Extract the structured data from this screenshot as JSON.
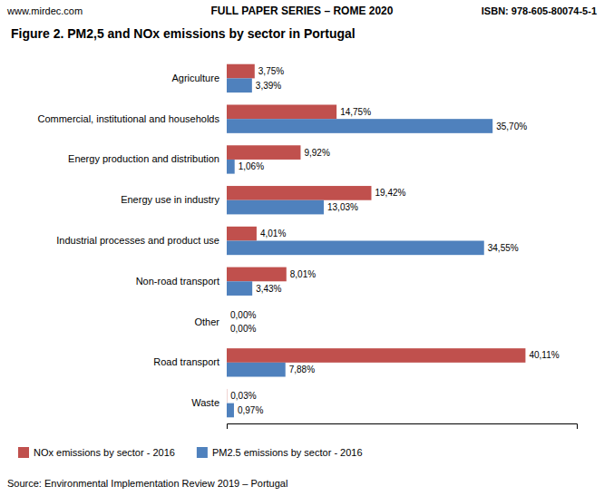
{
  "chart_data": {
    "type": "bar",
    "orientation": "horizontal",
    "title": "Figure 2. PM2,5 and NOx emissions by sector in Portugal",
    "annotations": [
      "www.mirdec.com",
      "FULL PAPER SERIES – ROME 2020",
      "ISBN: 978-605-80074-5-1",
      "Source: Environmental Implementation Review 2019 – Portugal"
    ],
    "categories": [
      "Waste",
      "Road transport",
      "Other",
      "Non-road transport",
      "Industrial processes and product use",
      "Energy use in industry",
      "Energy production and distribution",
      "Commercial, institutional and households",
      "Agriculture"
    ],
    "series": [
      {
        "name": "NOx emissions by sector - 2016",
        "color": "#c0504d",
        "values": [
          0.03,
          40.11,
          0.0,
          8.01,
          4.01,
          19.42,
          9.92,
          14.75,
          3.75
        ],
        "value_labels": [
          "0,03%",
          "40,11%",
          "0,00%",
          "8,01%",
          "4,01%",
          "19,42%",
          "9,92%",
          "14,75%",
          "3,75%"
        ]
      },
      {
        "name": "PM2.5 emissions by sector - 2016",
        "color": "#4f81bd",
        "values": [
          0.97,
          7.88,
          0.0,
          3.43,
          34.55,
          13.03,
          1.06,
          35.7,
          3.39
        ],
        "value_labels": [
          "0,97%",
          "7,88%",
          "0,00%",
          "3,43%",
          "34,55%",
          "13,03%",
          "1,06%",
          "35,70%",
          "3,39%"
        ]
      }
    ],
    "xlim": [
      0,
      47
    ],
    "grid": false,
    "data_labels": true,
    "tick_labels": "y"
  }
}
